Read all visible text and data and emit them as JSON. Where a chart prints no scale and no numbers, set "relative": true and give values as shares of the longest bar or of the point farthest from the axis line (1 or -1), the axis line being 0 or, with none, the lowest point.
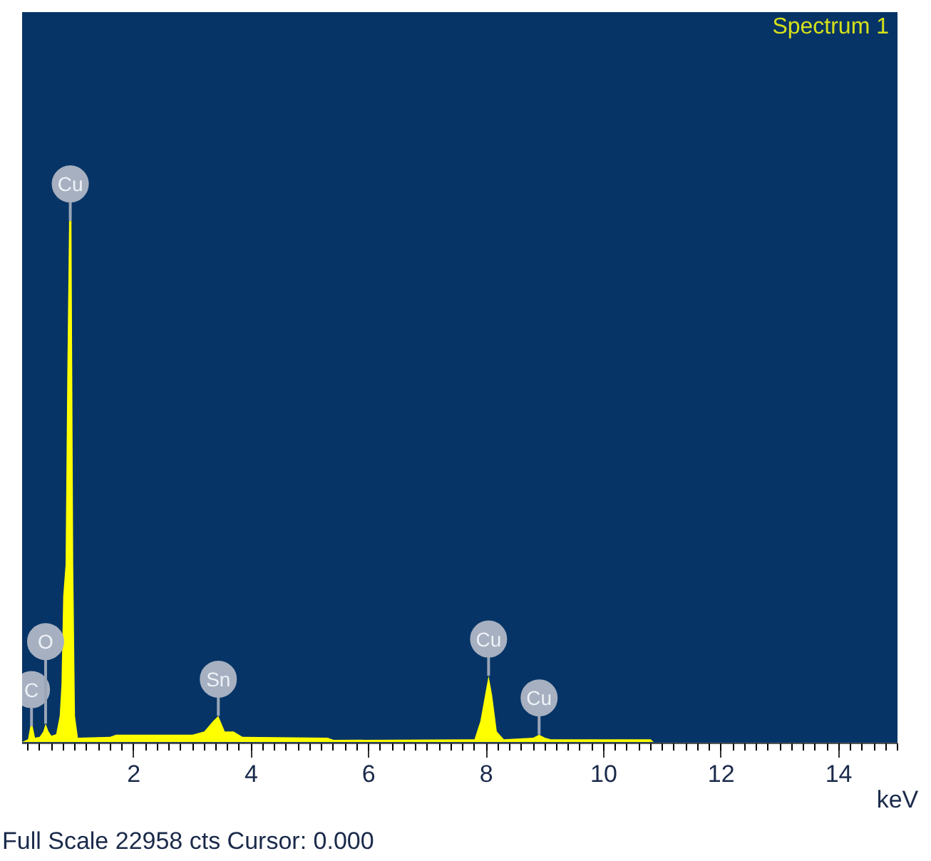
{
  "chart_data": {
    "type": "area",
    "title": "Spectrum 1",
    "xlabel": "keV",
    "relative": true,
    "x": [
      0.1,
      0.2,
      0.24,
      0.28,
      0.32,
      0.4,
      0.46,
      0.5,
      0.55,
      0.6,
      0.68,
      0.74,
      0.77,
      0.8,
      0.84,
      0.87,
      0.9,
      0.94,
      0.97,
      1.0,
      1.05,
      1.6,
      1.7,
      3.0,
      3.2,
      3.35,
      3.44,
      3.55,
      3.7,
      3.85,
      5.3,
      5.4,
      7.8,
      7.9,
      7.98,
      8.04,
      8.1,
      8.18,
      8.3,
      8.8,
      8.9,
      9.0,
      9.1,
      10.8,
      10.85,
      15
    ],
    "series": [
      {
        "color": "#ffff00",
        "values": [
          0.0,
          0.005,
          0.03,
          0.03,
          0.008,
          0.01,
          0.02,
          0.035,
          0.02,
          0.012,
          0.015,
          0.05,
          0.11,
          0.28,
          0.34,
          0.71,
          1.0,
          1.0,
          0.34,
          0.05,
          0.008,
          0.01,
          0.014,
          0.014,
          0.02,
          0.04,
          0.05,
          0.02,
          0.02,
          0.01,
          0.008,
          0.004,
          0.005,
          0.04,
          0.09,
          0.127,
          0.09,
          0.02,
          0.005,
          0.008,
          0.014,
          0.008,
          0.005,
          0.005,
          0.0,
          0.0
        ]
      }
    ],
    "xlim": [
      0.1,
      15
    ],
    "xticks": [
      2,
      4,
      6,
      8,
      10,
      12,
      14
    ],
    "tick_labels": "x",
    "grid": false,
    "annotations": [
      {
        "text": "C",
        "x": 0.26,
        "y": 0.03
      },
      {
        "text": "O",
        "x": 0.5,
        "y": 0.035
      },
      {
        "text": "Cu",
        "x": 0.92,
        "y": 1.0
      },
      {
        "text": "Sn",
        "x": 3.44,
        "y": 0.05
      },
      {
        "text": "Cu",
        "x": 8.04,
        "y": 0.127
      },
      {
        "text": "Cu",
        "x": 8.9,
        "y": 0.014
      },
      "Full Scale 22958 cts Cursor: 0.000"
    ]
  }
}
